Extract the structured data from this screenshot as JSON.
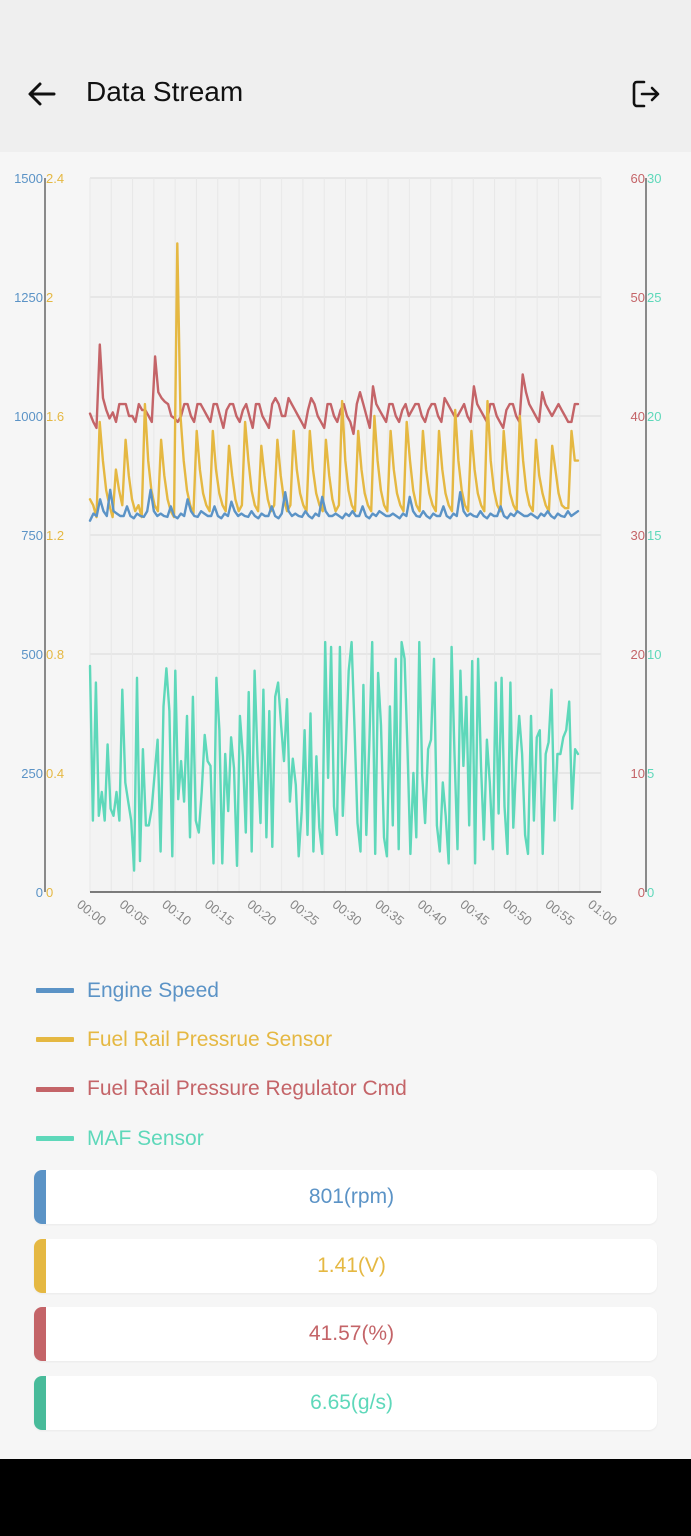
{
  "app": {
    "title": "Data Stream"
  },
  "icons": {
    "back": "arrow-left-icon",
    "exit": "logout-icon"
  },
  "colors": {
    "engine_speed": "#5b93c6",
    "fuel_rail_sensor": "#e5b842",
    "fuel_rail_regulator": "#c46468",
    "maf": "#5ed8ba",
    "maf_bar": "#48bb9a"
  },
  "chart_data": {
    "type": "line",
    "grid": true,
    "legend": "bottom",
    "x_ticks": [
      "00:00",
      "00:05",
      "00:10",
      "00:15",
      "00:20",
      "00:25",
      "00:30",
      "00:35",
      "00:40",
      "00:45",
      "00:50",
      "00:55",
      "01:00"
    ],
    "axes": {
      "engine_speed": {
        "side": "left-outer",
        "range": [
          0,
          1500
        ],
        "ticks": [
          "0",
          "250",
          "500",
          "750",
          "1000",
          "1250",
          "1500"
        ]
      },
      "fuel_rail_sensor": {
        "side": "left-inner",
        "range": [
          0,
          2.4
        ],
        "ticks": [
          "0",
          "0.4",
          "0.8",
          "1.2",
          "1.6",
          "2",
          "2.4"
        ]
      },
      "fuel_rail_regulator": {
        "side": "right-inner",
        "range": [
          0,
          60
        ],
        "ticks": [
          "0",
          "10",
          "20",
          "30",
          "40",
          "50",
          "60"
        ]
      },
      "maf": {
        "side": "right-outer",
        "range": [
          0,
          30
        ],
        "ticks": [
          "0",
          "5",
          "10",
          "15",
          "20",
          "25",
          "30"
        ]
      }
    },
    "series": [
      {
        "name": "Engine Speed",
        "key": "engine_speed",
        "axis": "engine_speed",
        "x_range": [
          0,
          57.3
        ],
        "values": [
          780,
          795,
          790,
          825,
          800,
          790,
          845,
          800,
          795,
          790,
          790,
          810,
          790,
          785,
          795,
          790,
          788,
          800,
          845,
          800,
          790,
          795,
          790,
          788,
          810,
          790,
          785,
          795,
          790,
          825,
          800,
          790,
          788,
          800,
          795,
          790,
          790,
          810,
          790,
          785,
          795,
          790,
          820,
          800,
          790,
          795,
          790,
          788,
          800,
          790,
          785,
          795,
          790,
          790,
          810,
          790,
          785,
          795,
          840,
          800,
          790,
          795,
          790,
          788,
          800,
          790,
          785,
          795,
          790,
          830,
          800,
          790,
          790,
          795,
          790,
          785,
          795,
          790,
          800,
          790,
          790,
          810,
          790,
          785,
          795,
          790,
          800,
          795,
          790,
          790,
          795,
          790,
          785,
          795,
          790,
          830,
          800,
          790,
          788,
          800,
          790,
          785,
          795,
          790,
          790,
          810,
          790,
          785,
          795,
          790,
          840,
          800,
          790,
          795,
          790,
          788,
          800,
          790,
          785,
          795,
          790,
          790,
          810,
          790,
          785,
          795,
          790,
          800,
          795,
          790,
          790,
          795,
          790,
          785,
          795,
          790,
          800,
          790,
          785,
          795,
          790,
          788,
          800,
          790,
          795,
          800
        ]
      },
      {
        "name": "Fuel Rail Pressrue Sensor",
        "key": "fuel_rail_sensor",
        "axis": "fuel_rail_sensor",
        "x_range": [
          0,
          57.3
        ],
        "values": [
          1.32,
          1.3,
          1.26,
          1.58,
          1.45,
          1.35,
          1.3,
          1.26,
          1.42,
          1.35,
          1.3,
          1.52,
          1.4,
          1.32,
          1.28,
          1.3,
          1.26,
          1.64,
          1.45,
          1.35,
          1.3,
          1.28,
          1.52,
          1.4,
          1.32,
          1.28,
          1.26,
          2.18,
          1.6,
          1.45,
          1.35,
          1.3,
          1.27,
          1.55,
          1.42,
          1.34,
          1.3,
          1.28,
          1.55,
          1.42,
          1.34,
          1.3,
          1.28,
          1.5,
          1.4,
          1.32,
          1.28,
          1.3,
          1.58,
          1.45,
          1.35,
          1.3,
          1.28,
          1.5,
          1.4,
          1.32,
          1.28,
          1.3,
          1.52,
          1.4,
          1.32,
          1.28,
          1.3,
          1.55,
          1.42,
          1.34,
          1.3,
          1.28,
          1.55,
          1.42,
          1.34,
          1.3,
          1.28,
          1.52,
          1.4,
          1.32,
          1.28,
          1.3,
          1.65,
          1.45,
          1.35,
          1.3,
          1.28,
          1.55,
          1.42,
          1.34,
          1.3,
          1.28,
          1.6,
          1.45,
          1.35,
          1.3,
          1.28,
          1.55,
          1.42,
          1.34,
          1.3,
          1.28,
          1.58,
          1.45,
          1.35,
          1.3,
          1.28,
          1.55,
          1.42,
          1.34,
          1.3,
          1.28,
          1.55,
          1.42,
          1.34,
          1.3,
          1.28,
          1.62,
          1.45,
          1.35,
          1.3,
          1.28,
          1.55,
          1.42,
          1.34,
          1.3,
          1.28,
          1.65,
          1.45,
          1.35,
          1.3,
          1.28,
          1.55,
          1.42,
          1.34,
          1.3,
          1.28,
          1.6,
          1.45,
          1.35,
          1.3,
          1.28,
          1.52,
          1.4,
          1.34,
          1.3,
          1.28,
          1.5,
          1.42,
          1.34,
          1.3,
          1.29,
          1.29,
          1.55,
          1.45,
          1.45
        ]
      },
      {
        "name": "Fuel Rail Pressure Regulator Cmd",
        "key": "fuel_rail_regulator",
        "axis": "fuel_rail_regulator",
        "x_range": [
          0,
          57.3
        ],
        "values": [
          40.2,
          39.5,
          39,
          46,
          41.5,
          40.5,
          39.8,
          40.3,
          39.5,
          41,
          41,
          41,
          40,
          40,
          39.5,
          41,
          40.5,
          40.5,
          40,
          39.5,
          45,
          42,
          41.5,
          41.2,
          41,
          40,
          39.8,
          39.5,
          40,
          41,
          41,
          40,
          39.5,
          41,
          41,
          40.5,
          40,
          39.5,
          41,
          41,
          40,
          39,
          40.5,
          41,
          41,
          40,
          39.5,
          40.5,
          41,
          40,
          39,
          41,
          41,
          40,
          39.5,
          39,
          41,
          41.5,
          41,
          40,
          40,
          41.5,
          41,
          40.5,
          40,
          39.5,
          39,
          40.5,
          41.5,
          41,
          40,
          39.5,
          39,
          41,
          41,
          40,
          39.5,
          40.5,
          41,
          40,
          39.5,
          38.5,
          41,
          42,
          41,
          40,
          39,
          42.5,
          41,
          40.5,
          40,
          39.5,
          41,
          41,
          40,
          39.5,
          40.5,
          41,
          40,
          40.5,
          41,
          41,
          40,
          39.5,
          40.5,
          41,
          41,
          40,
          39.5,
          41.5,
          41,
          40.5,
          40,
          40,
          40.5,
          41,
          40,
          39.5,
          42.5,
          41,
          40.5,
          40,
          39.5,
          41,
          41,
          40,
          39.5,
          39,
          40.5,
          41,
          41,
          40,
          39.5,
          43.5,
          42,
          41,
          40.5,
          40,
          39.5,
          42,
          41,
          40.5,
          40,
          40.5,
          41,
          40.5,
          40,
          39.5,
          39.5,
          41,
          41
        ]
      },
      {
        "name": "MAF Sensor",
        "key": "maf",
        "axis": "maf",
        "x_range": [
          0,
          57.3
        ],
        "values": [
          9.5,
          3,
          8.8,
          3.2,
          4.2,
          3,
          6.2,
          3.5,
          3.2,
          4.2,
          3,
          8.5,
          4.6,
          3.8,
          3,
          0.9,
          9,
          1.3,
          6,
          2.8,
          2.8,
          3.5,
          5,
          6.4,
          1.7,
          7.8,
          9.4,
          7.6,
          1.5,
          9.3,
          3.9,
          5.5,
          3.8,
          7.4,
          2.3,
          8.2,
          3,
          2.5,
          4.2,
          6.6,
          5.5,
          5.3,
          1.2,
          9,
          6.8,
          1.2,
          5.8,
          3.4,
          6.5,
          5.2,
          1.1,
          7.4,
          5.7,
          2.5,
          8.4,
          1.7,
          9.3,
          5.5,
          2.9,
          8.5,
          2.3,
          7.6,
          1.9,
          8.2,
          8.8,
          7,
          5.5,
          8.1,
          3.8,
          5.6,
          4.5,
          1.5,
          3.4,
          6.8,
          2.4,
          7.5,
          1.7,
          5.7,
          2.7,
          1.6,
          10.5,
          4.8,
          10.3,
          3.6,
          2.4,
          10.3,
          3.2,
          6,
          9.3,
          10.5,
          6.8,
          2.9,
          1.7,
          8.7,
          2.4,
          6.2,
          10.5,
          1.6,
          9.2,
          7,
          2.3,
          1.5,
          7.8,
          2.8,
          9.8,
          1.8,
          10.5,
          9.8,
          6,
          1.6,
          5,
          2.3,
          10.5,
          4.9,
          2.9,
          6,
          6.4,
          9.8,
          2.8,
          1.7,
          4.6,
          3.2,
          1.2,
          10.3,
          5.8,
          1.8,
          9.3,
          5.3,
          8.2,
          2.8,
          9.7,
          1.2,
          9.8,
          5.3,
          2.2,
          6.4,
          4.6,
          1.8,
          8.8,
          3.3,
          9,
          3.6,
          1.6,
          8.8,
          2.7,
          5.5,
          7.4,
          5.8,
          2.4,
          1.6,
          7.4,
          3,
          6.5,
          6.8,
          1.6,
          5.8,
          6.3,
          8.5,
          3,
          5.8,
          5.8,
          6.5,
          6.8,
          8,
          3.5,
          6,
          5.8
        ]
      }
    ]
  },
  "legend": [
    {
      "label": "Engine Speed",
      "color_key": "engine_speed"
    },
    {
      "label": "Fuel Rail Pressrue Sensor",
      "color_key": "fuel_rail_sensor"
    },
    {
      "label": "Fuel Rail Pressure Regulator Cmd",
      "color_key": "fuel_rail_regulator"
    },
    {
      "label": "MAF Sensor",
      "color_key": "maf"
    }
  ],
  "readings": [
    {
      "value": "801(rpm)",
      "color_key": "engine_speed"
    },
    {
      "value": "1.41(V)",
      "color_key": "fuel_rail_sensor"
    },
    {
      "value": "41.57(%)",
      "color_key": "fuel_rail_regulator"
    },
    {
      "value": "6.65(g/s)",
      "color_key": "maf",
      "bar_color_key": "maf_bar"
    }
  ]
}
